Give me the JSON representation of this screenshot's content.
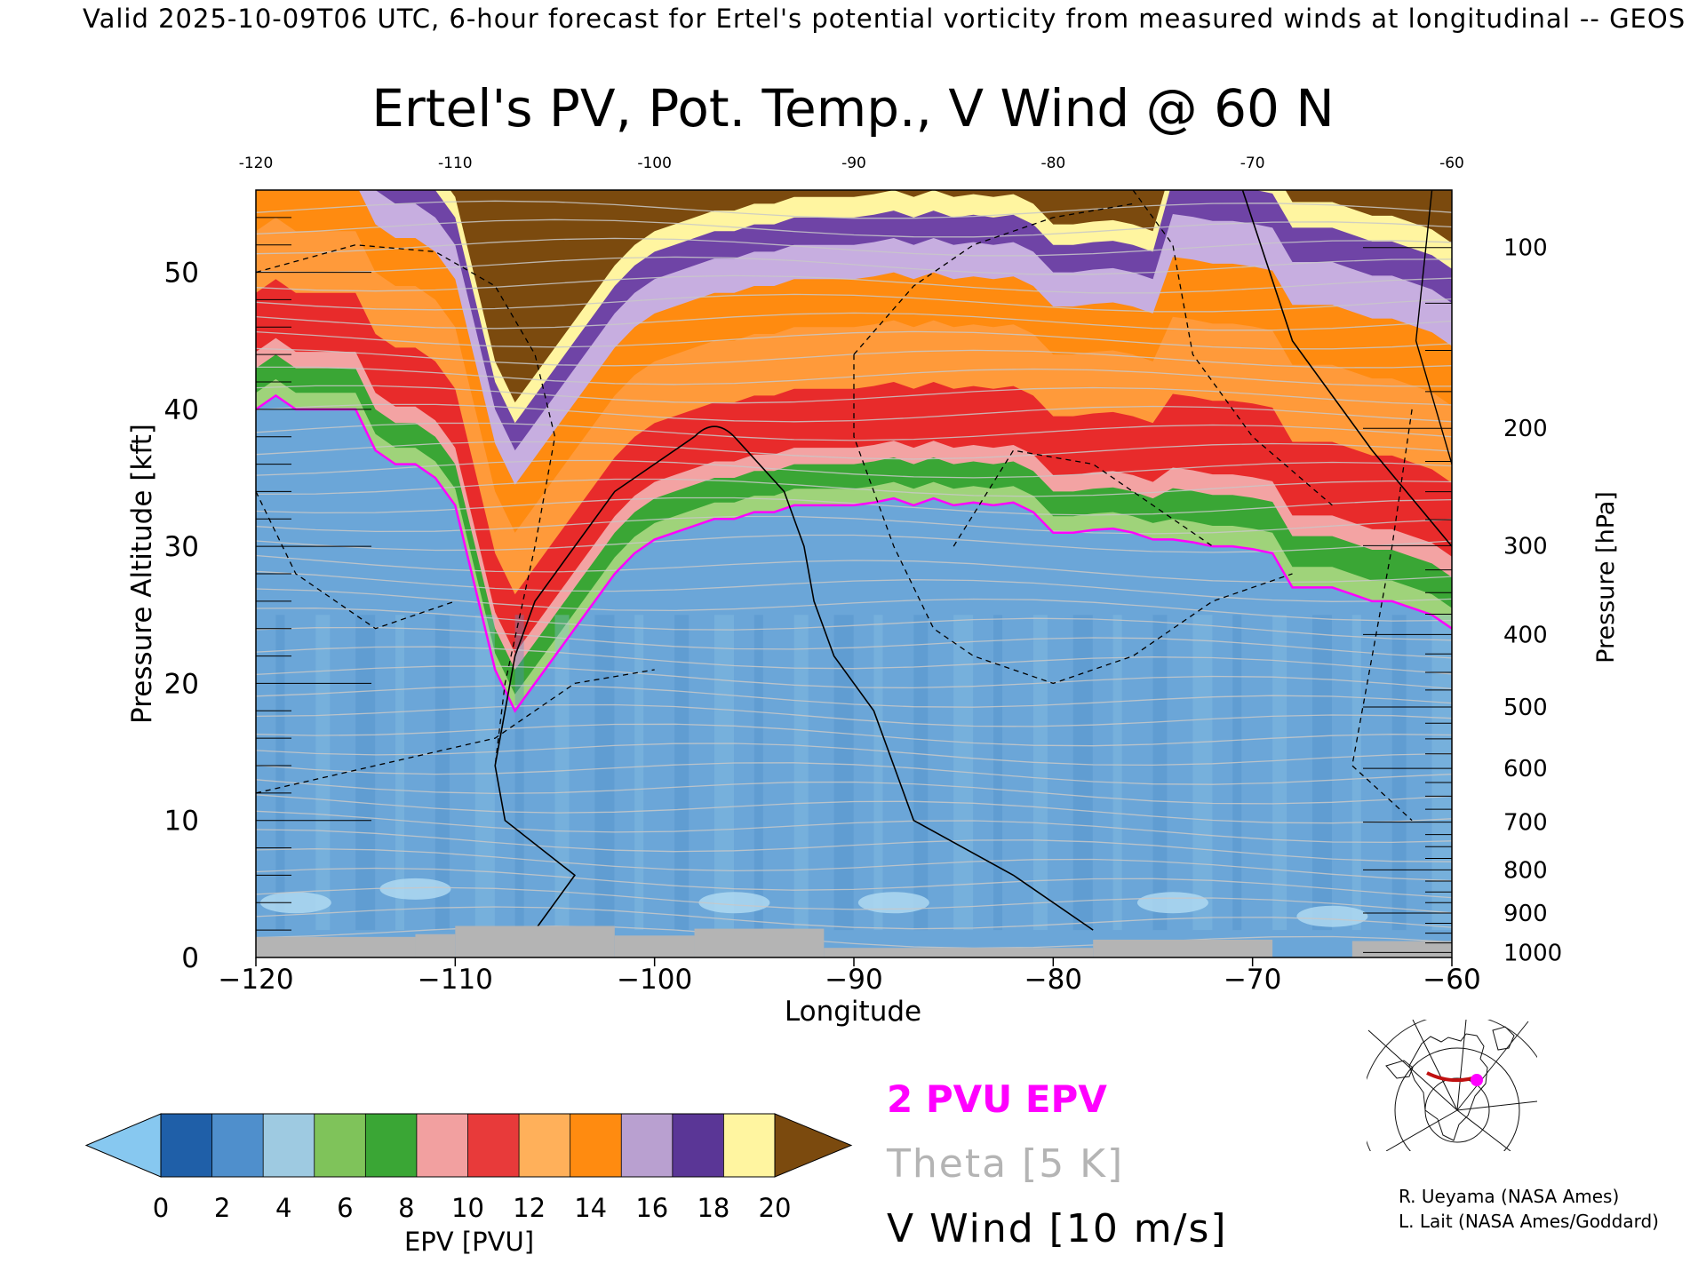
{
  "header": {
    "valid_line": "Valid 2025-10-09T06 UTC, 6-hour forecast for Ertel's potential vorticity from measured winds at longitudinal -- GEOS"
  },
  "chart_data": {
    "type": "heatmap",
    "title": "Ertel's PV, Pot. Temp., V Wind @ 60 N",
    "xlabel": "Longitude",
    "ylabel_left": "Pressure Altitude [kft]",
    "ylabel_right": "Pressure [hPa]",
    "xlim": [
      -120,
      -60
    ],
    "ylim": [
      0,
      56
    ],
    "x_ticks": [
      -120,
      -110,
      -100,
      -90,
      -80,
      -70,
      -60
    ],
    "x_tick_labels": [
      "−120",
      "−110",
      "−100",
      "−90",
      "−80",
      "−70",
      "−60"
    ],
    "top_tick_labels": [
      "-120",
      "-110",
      "-100",
      "-90",
      "-80",
      "-70",
      "-60"
    ],
    "y_ticks_kft": [
      0,
      10,
      20,
      30,
      40,
      50
    ],
    "pressure_ticks_hpa": [
      100,
      200,
      300,
      400,
      500,
      600,
      700,
      800,
      900,
      1000
    ],
    "tropopause_2pvu_kft": {
      "lon": [
        -120,
        -119,
        -118,
        -117,
        -116,
        -115,
        -114,
        -113,
        -112,
        -111,
        -110,
        -109,
        -108,
        -107,
        -106,
        -105,
        -104,
        -103,
        -102,
        -101,
        -100,
        -99,
        -98,
        -97,
        -96,
        -95,
        -94,
        -93,
        -92,
        -91,
        -90,
        -89,
        -88,
        -87,
        -86,
        -85,
        -84,
        -83,
        -82,
        -81,
        -80,
        -79,
        -78,
        -77,
        -76,
        -75,
        -74,
        -73,
        -72,
        -71,
        -70,
        -69,
        -68,
        -67,
        -66,
        -65,
        -64,
        -63,
        -62,
        -61,
        -60
      ],
      "alt": [
        40,
        41,
        40,
        40,
        40,
        40,
        37,
        36,
        36,
        35,
        33,
        27,
        21,
        18,
        20,
        22,
        24,
        26,
        28,
        29.5,
        30.5,
        31,
        31.5,
        32,
        32,
        32.5,
        32.5,
        33,
        33,
        33,
        33,
        33.2,
        33.5,
        33,
        33.5,
        33,
        33.2,
        33,
        33.2,
        32.5,
        31,
        31,
        31.2,
        31.3,
        31,
        30.5,
        30.5,
        30.3,
        30,
        30,
        29.8,
        29.5,
        27,
        27,
        27,
        26.5,
        26,
        26,
        25.5,
        25,
        24
      ]
    },
    "v_wind_zero_contour_lon_at_kft": {
      "alt": [
        38,
        34,
        30,
        26,
        22,
        18,
        14,
        10,
        6,
        2
      ],
      "lon_west": [
        -98,
        -102,
        -104,
        -106,
        -107,
        -107.5,
        -108,
        -107.5,
        -104,
        -106
      ],
      "lon_east": [
        -96,
        -93.5,
        -92.5,
        -92,
        -91,
        -89,
        -88,
        -87,
        -82,
        -78
      ]
    },
    "colorbar": {
      "label": "EPV [PVU]",
      "min": 0,
      "max": 20,
      "step": 2,
      "tick_labels": [
        "0",
        "2",
        "4",
        "6",
        "8",
        "10",
        "12",
        "14",
        "16",
        "18",
        "20"
      ],
      "colors": [
        "#1f5fa8",
        "#4f8fcc",
        "#9ecae1",
        "#7fc35a",
        "#3aa635",
        "#f2a0a0",
        "#e83a3a",
        "#ffb05a",
        "#ff8b10",
        "#b9a0d0",
        "#5a3696",
        "#fff5a0"
      ],
      "under_color": "#87c8f0",
      "over_color": "#7b4a0e"
    },
    "legend": [
      {
        "text": "2 PVU EPV",
        "color": "#ff00ff"
      },
      {
        "text": "Theta [5 K]",
        "color": "#b4b4b4"
      },
      {
        "text": "V Wind [10 m/s]",
        "color": "#000000"
      }
    ],
    "grid": false
  },
  "credits": {
    "line1": "R. Ueyama (NASA Ames)",
    "line2": "L. Lait (NASA Ames/Goddard)"
  },
  "map_inset": {
    "icon": "polar-map-icon",
    "track_color": "#c01010",
    "marker_color": "#ff00ff"
  }
}
